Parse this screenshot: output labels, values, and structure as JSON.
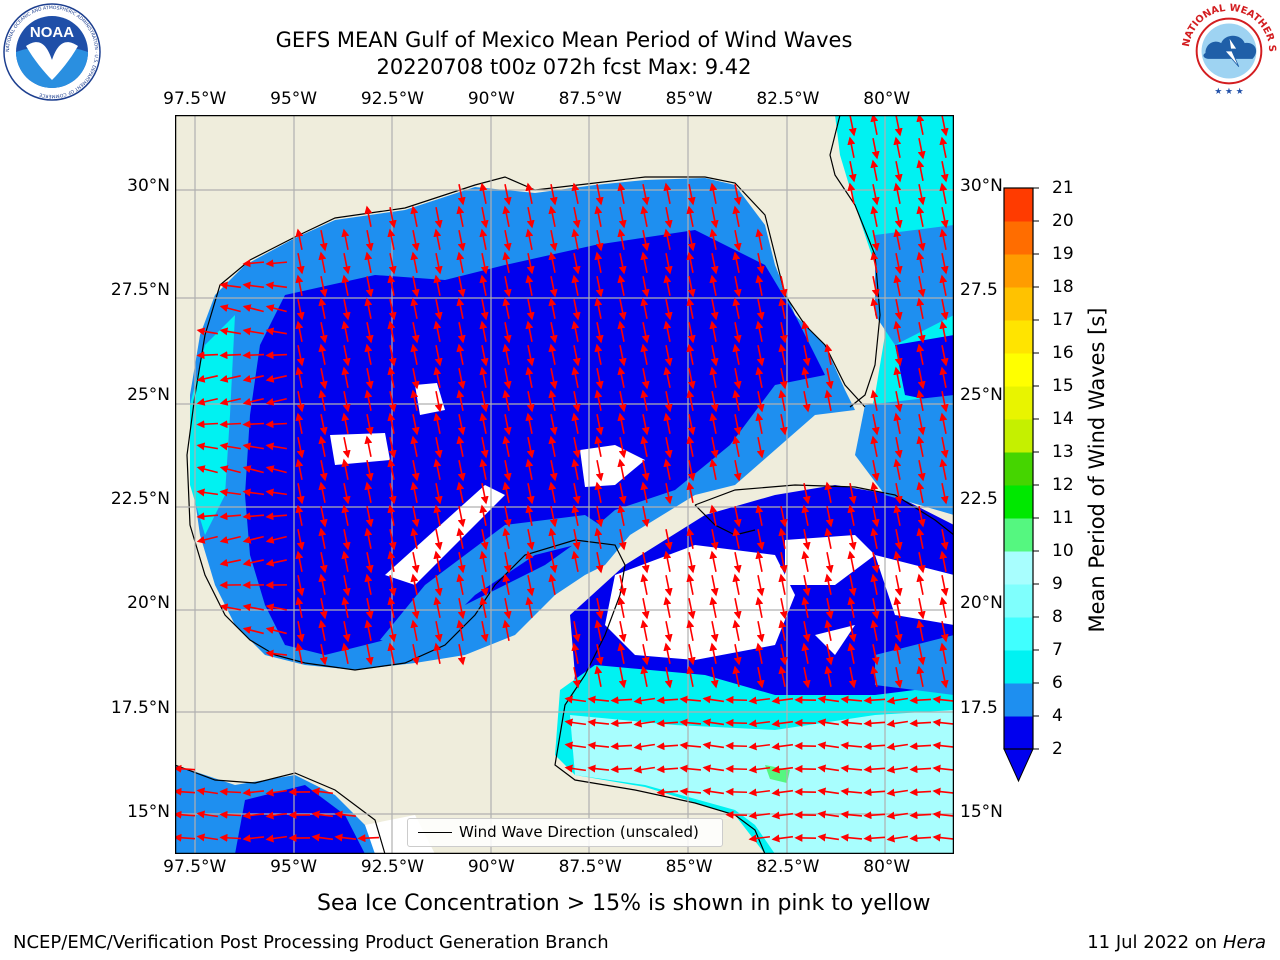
{
  "header": {
    "title_line1": "GEFS MEAN Gulf of Mexico Mean Period of Wind Waves",
    "title_line2": "20220708 t00z 072h fcst   Max: 9.42"
  },
  "logos": {
    "left": {
      "name": "noaa-logo",
      "text": "NOAA",
      "ring_text": "NATIONAL OCEANIC AND ATMOSPHERIC ADMINISTRATION · U.S. DEPARTMENT OF COMMERCE"
    },
    "right": {
      "name": "nws-logo",
      "ring_text": "NATIONAL WEATHER SERVICE"
    }
  },
  "map": {
    "lon_ticks": [
      "97.5°W",
      "95°W",
      "92.5°W",
      "90°W",
      "87.5°W",
      "85°W",
      "82.5°W",
      "80°W"
    ],
    "lon_values": [
      -97.5,
      -95,
      -92.5,
      -90,
      -87.5,
      -85,
      -82.5,
      -80
    ],
    "lat_ticks_left": [
      "30°N",
      "27.5°N",
      "25°N",
      "22.5°N",
      "20°N",
      "17.5°N",
      "15°N"
    ],
    "lat_ticks_right": [
      "30°N",
      "27.5",
      "25°N",
      "22.5",
      "20°N",
      "17.5",
      "15°N"
    ],
    "lat_values": [
      30,
      27.5,
      25,
      22.5,
      20,
      17.5,
      15
    ],
    "lon_range": [
      -98,
      -78.3
    ],
    "lat_range": [
      14,
      31.7
    ],
    "grid": true,
    "land_color": "#efeddc",
    "gridline_color": "#b0b0b0",
    "arrow_color": "#ff0000",
    "legend_label": "Wind Wave Direction (unscaled)",
    "legend_placement": "lower-center"
  },
  "colorbar": {
    "label": "Mean Period of Wind Waves [s]",
    "ticks": [
      "2",
      "4",
      "6",
      "7",
      "8",
      "9",
      "10",
      "11",
      "12",
      "13",
      "14",
      "15",
      "16",
      "17",
      "18",
      "19",
      "20",
      "21"
    ],
    "colors": [
      "#0000ee",
      "#1e8ff0",
      "#00f2f2",
      "#40ffff",
      "#7ffffd",
      "#a8fefe",
      "#55f780",
      "#00e800",
      "#45d500",
      "#c5f000",
      "#e8f400",
      "#ffff00",
      "#ffe400",
      "#ffc200",
      "#ff9c00",
      "#ff6d00",
      "#ff3b00",
      "#ff0000"
    ],
    "extend": "min"
  },
  "caption": "Sea Ice Concentration > 15% is shown in pink to yellow",
  "footer": {
    "left": "NCEP/EMC/Verification Post Processing Product Generation Branch",
    "right_prefix": "11 Jul 2022 on ",
    "right_host": "Hera"
  }
}
